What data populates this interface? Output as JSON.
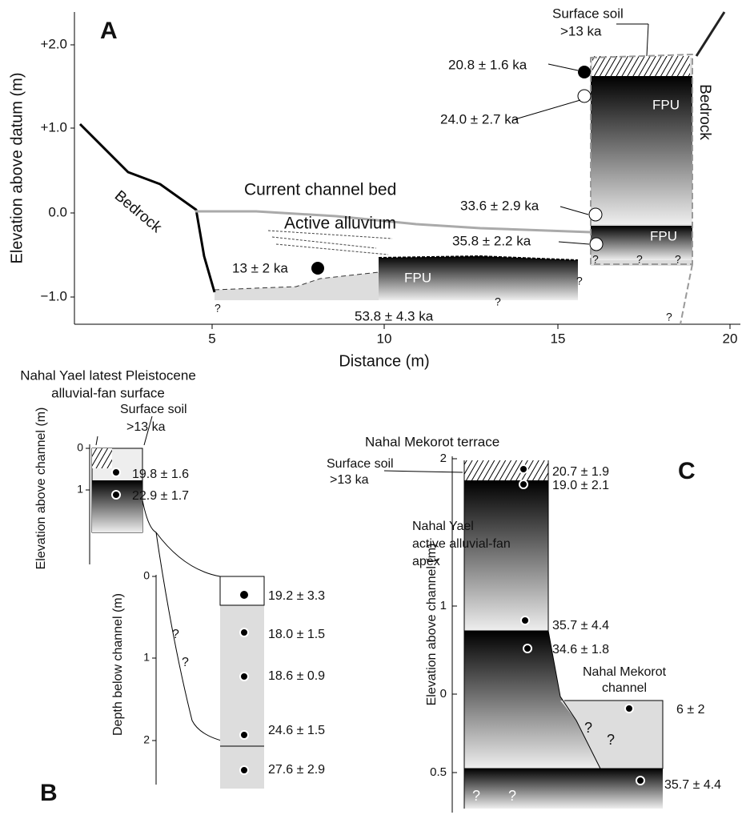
{
  "panel_a": {
    "label": "A",
    "y_axis_title": "Elevation above datum (m)",
    "x_axis_title": "Distance (m)",
    "y_ticks": [
      "+2.0",
      "+1.0",
      "0.0",
      "−1.0"
    ],
    "x_ticks": [
      "5",
      "10",
      "15",
      "20"
    ],
    "labels": [
      "Surface soil",
      ">13 ka",
      "20.8 ± 1.6 ka",
      "24.0 ± 2.7 ka",
      "FPU",
      "Current channel bed",
      "Active alluvium",
      "33.6 ± 2.9 ka",
      "35.8 ± 2.2 ka",
      "FPU",
      "13 ± 2 ka",
      "FPU",
      "53.8 ± 4.3 ka"
    ],
    "rotated_labels": [
      "Bedrock",
      "Bedrock"
    ],
    "question_marks": [
      "?",
      "?",
      "?",
      "?",
      "?",
      "?",
      "?"
    ]
  },
  "panel_b": {
    "label": "B",
    "title_lines": [
      "Nahal Yael latest Pleistocene",
      "alluvial-fan surface"
    ],
    "labels": [
      "Surface soil",
      ">13 ka",
      "19.8 ± 1.6",
      "22.9 ± 1.7",
      "Nahal Yael",
      "active alluvial-fan",
      "apex",
      "19.2 ± 3.3",
      "18.0 ± 1.5",
      "18.6 ± 0.9",
      "24.6 ± 1.5",
      "27.6 ± 2.9"
    ],
    "elevation_axis_title": "Elevation above channel (m)",
    "elevation_ticks": [
      "0",
      "1"
    ],
    "depth_axis_title": "Depth below channel (m)",
    "depth_ticks": [
      "0",
      "1",
      "2"
    ],
    "question_marks": [
      "?",
      "?"
    ]
  },
  "panel_c": {
    "label": "C",
    "title": "Nahal Mekorot terrace",
    "labels": [
      "Surface soil",
      ">13 ka",
      "20.7 ± 1.9",
      "19.0 ± 2.1",
      "35.7 ± 4.4",
      "34.6 ± 1.8",
      "Nahal Mekorot",
      "channel",
      "6 ± 2",
      "35.7 ± 4.4"
    ],
    "axis_title": "Elevation above channel (m)",
    "ticks": [
      "2",
      "1",
      "0",
      "0.5"
    ],
    "question_marks": [
      "?",
      "?",
      "?",
      "?"
    ]
  }
}
